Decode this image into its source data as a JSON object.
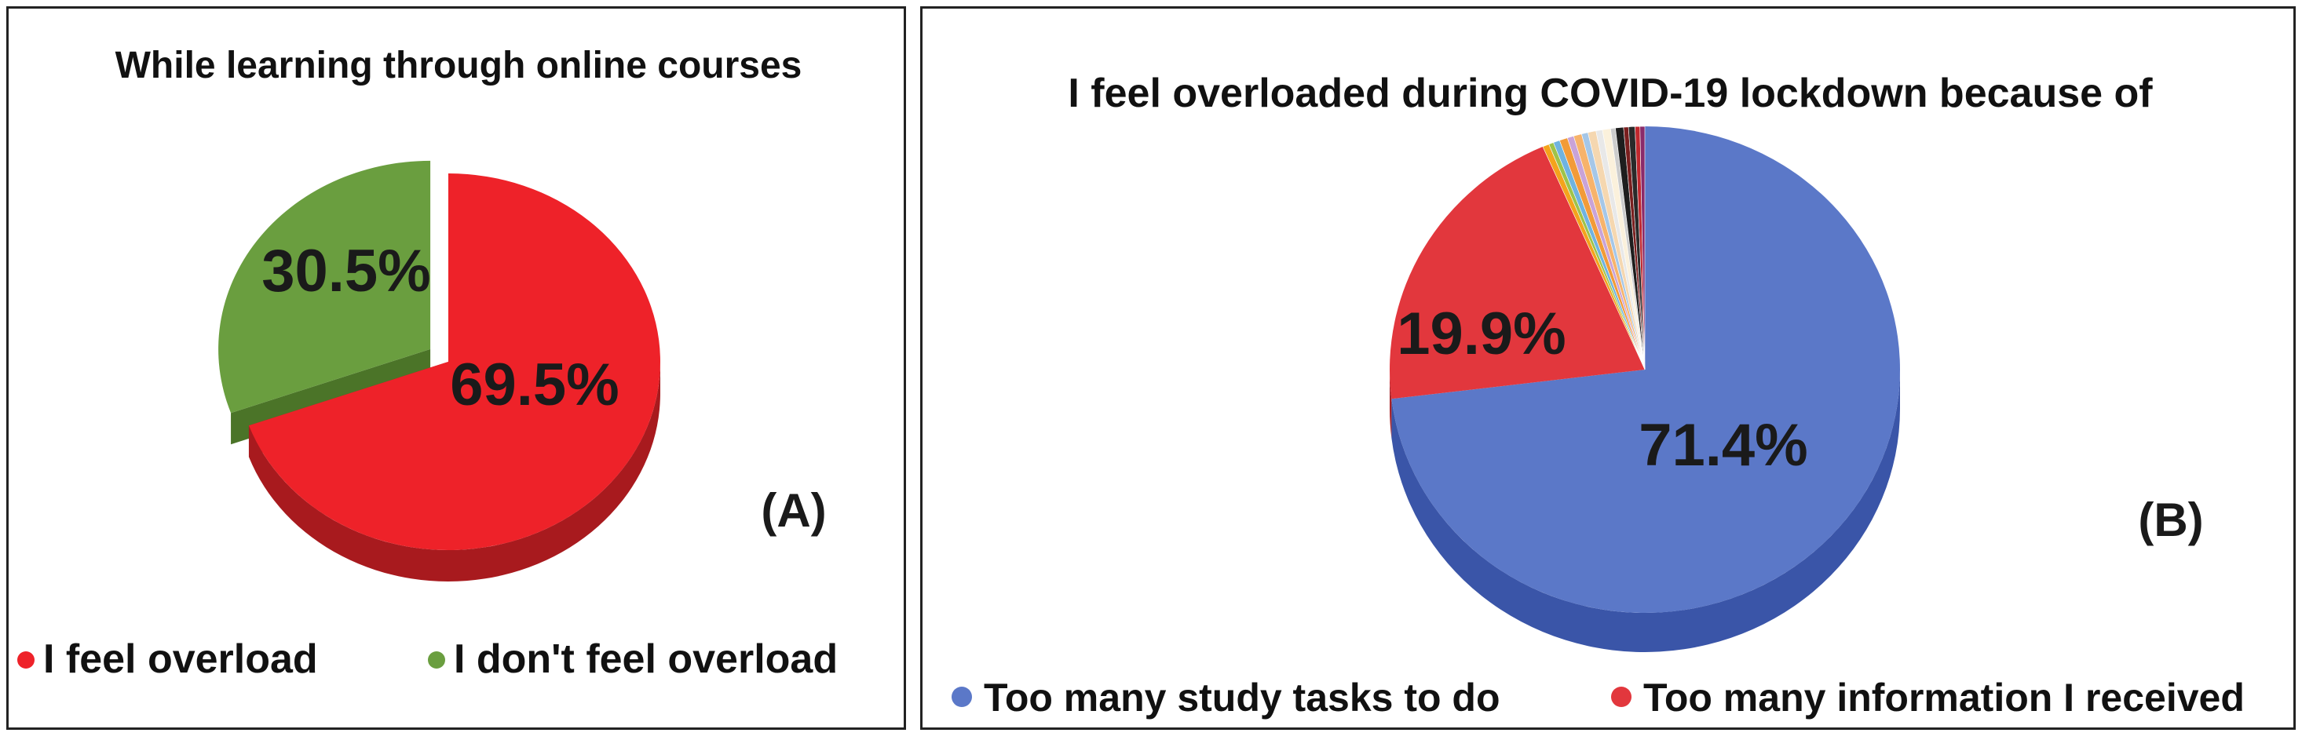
{
  "chart_data": [
    {
      "type": "pie",
      "title": "While learning through online courses",
      "panel_label": "(A)",
      "series": [
        {
          "name": "I feel overload",
          "value": 69.5,
          "label": "69.5%",
          "color": "#ee2229",
          "side_color": "#a81a1e"
        },
        {
          "name": "I don't feel overload",
          "value": 30.5,
          "label": "30.5%",
          "color": "#6a9e3f",
          "side_color": "#4b7428"
        }
      ],
      "legend": [
        "I feel overload",
        "I don't feel overload"
      ],
      "legend_placement": "bottom"
    },
    {
      "type": "pie",
      "title": "I feel overloaded during COVID-19 lockdown because of",
      "panel_label": "(B)",
      "series": [
        {
          "name": "Too many study  tasks to do",
          "value": 71.4,
          "label": "71.4%",
          "color": "#5b78c8",
          "side_color": "#3a55a8"
        },
        {
          "name": "Too many information I received",
          "value": 19.9,
          "label": "19.9%",
          "color": "#e2373d",
          "side_color": "#a82228"
        }
      ],
      "minor_slices": [
        {
          "value": 0.4,
          "color": "#f4a31c"
        },
        {
          "value": 0.3,
          "color": "#9ec34a"
        },
        {
          "value": 0.4,
          "color": "#6fb3e0"
        },
        {
          "value": 0.5,
          "color": "#f29b38"
        },
        {
          "value": 0.4,
          "color": "#c9a3d8"
        },
        {
          "value": 0.5,
          "color": "#f7b36b"
        },
        {
          "value": 0.4,
          "color": "#a5c7e8"
        },
        {
          "value": 0.5,
          "color": "#f5d7b0"
        },
        {
          "value": 0.4,
          "color": "#e8e8e8"
        },
        {
          "value": 0.5,
          "color": "#fbf1dc"
        },
        {
          "value": 0.3,
          "color": "#cccccc"
        },
        {
          "value": 0.5,
          "color": "#1e1e1e"
        },
        {
          "value": 0.3,
          "color": "#7a1f1f"
        },
        {
          "value": 0.4,
          "color": "#2a2a2a"
        },
        {
          "value": 0.3,
          "color": "#c0282e"
        },
        {
          "value": 0.3,
          "color": "#8a2b6a"
        }
      ],
      "legend": [
        "Too many study  tasks to do",
        "Too many information I received"
      ],
      "legend_placement": "bottom"
    }
  ]
}
